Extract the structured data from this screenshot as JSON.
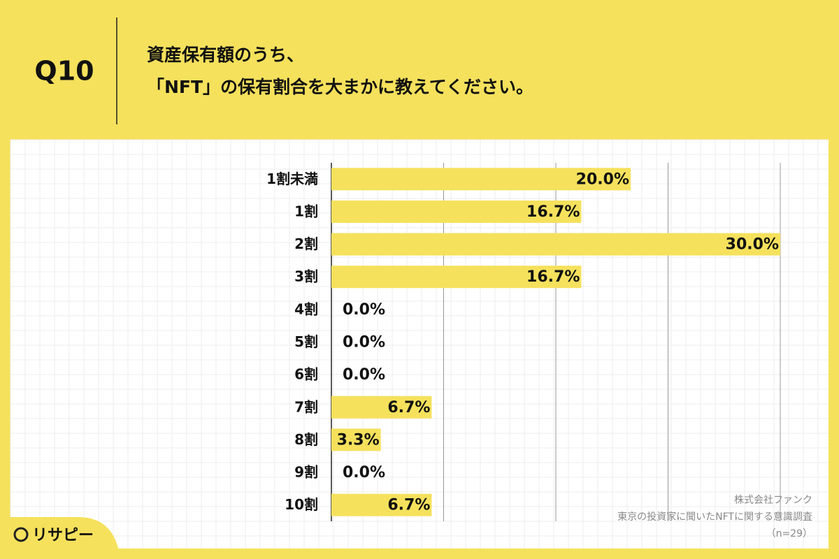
{
  "question": "Q10",
  "chart_data": {
    "type": "bar",
    "orientation": "horizontal",
    "title_lines": [
      "資産保有額のうち、",
      "「NFT」の保有割合を大まかに教えてください。"
    ],
    "categories": [
      "1割未満",
      "1割",
      "2割",
      "3割",
      "4割",
      "5割",
      "6割",
      "7割",
      "8割",
      "9割",
      "10割"
    ],
    "values": [
      20.0,
      16.7,
      30.0,
      16.7,
      0,
      0,
      0,
      6.7,
      3.3,
      0,
      6.7
    ],
    "value_labels": [
      "20.0%",
      "16.7%",
      "30.0%",
      "16.7%",
      "0.0%",
      "0.0%",
      "0.0%",
      "6.7%",
      "3.3%",
      "0.0%",
      "6.7%"
    ],
    "color": "#f5e15c",
    "xlim": [
      0,
      30
    ],
    "xticks": [
      0,
      7.5,
      15,
      22.5,
      30
    ],
    "grid": true
  },
  "source": [
    "株式会社ファンク",
    "東京の投資家に聞いたNFTに関する意識調査",
    "（n=29）"
  ],
  "logo": "リサピー"
}
